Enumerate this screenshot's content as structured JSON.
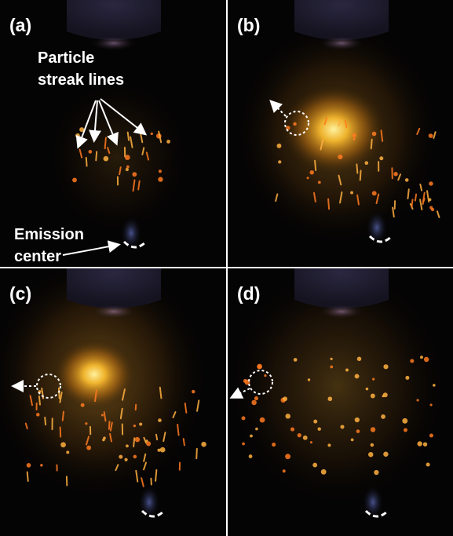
{
  "panels": [
    {
      "label": "(a)"
    },
    {
      "label": "(b)"
    },
    {
      "label": "(c)"
    },
    {
      "label": "(d)"
    }
  ],
  "annotations": {
    "particle_streak_lines": [
      "Particle",
      "streak lines"
    ],
    "emission_center": [
      "Emission",
      "center"
    ]
  }
}
